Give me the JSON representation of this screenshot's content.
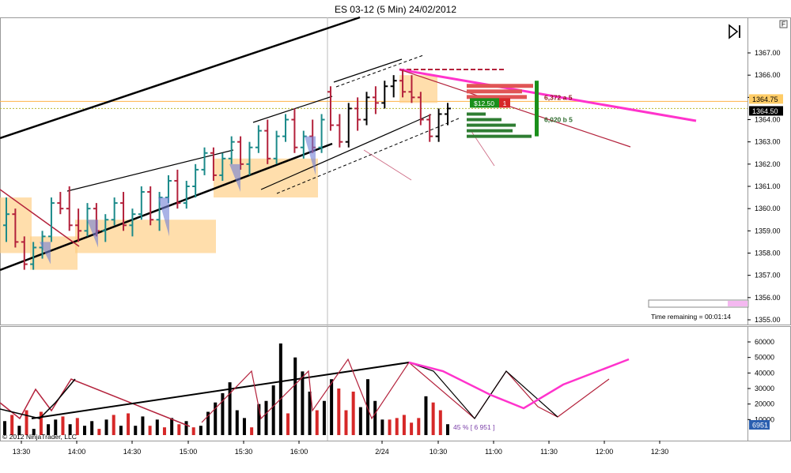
{
  "header": {
    "title": "ES 03-12 (5 Min)  24/02/2012",
    "f_box": "F",
    "copyright": "© 2012 NinjaTrader, LLC"
  },
  "chart_data": [
    {
      "type": "candlestick",
      "title": "ES 03-12 (5 Min)  24/02/2012",
      "xlabel": "",
      "ylabel": "",
      "ylim": [
        1355.0,
        1368.0
      ],
      "y_ticks": [
        1355.0,
        1356.0,
        1357.0,
        1358.0,
        1359.0,
        1360.0,
        1361.0,
        1362.0,
        1363.0,
        1364.0,
        1365.0,
        1366.0,
        1367.0
      ],
      "x_ticks": [
        "13:30",
        "14:00",
        "14:30",
        "15:00",
        "15:30",
        "16:00",
        "2/24",
        "10:30",
        "11:00",
        "11:30",
        "12:00",
        "12:30"
      ],
      "price_markers": [
        {
          "label": "1364.75",
          "value": 1364.75,
          "color": "#ffcc66"
        },
        {
          "label": "1364.50",
          "value": 1364.5,
          "color": "#000000"
        }
      ],
      "bars": [
        {
          "o": 1359.25,
          "h": 1360.5,
          "l": 1358.5,
          "c": 1359.75
        },
        {
          "o": 1359.75,
          "h": 1360.0,
          "l": 1358.25,
          "c": 1358.5
        },
        {
          "o": 1358.5,
          "h": 1358.75,
          "l": 1357.25,
          "c": 1357.5
        },
        {
          "o": 1357.5,
          "h": 1358.5,
          "l": 1357.25,
          "c": 1358.25
        },
        {
          "o": 1358.25,
          "h": 1359.0,
          "l": 1357.75,
          "c": 1358.75
        },
        {
          "o": 1358.75,
          "h": 1360.5,
          "l": 1358.5,
          "c": 1360.25
        },
        {
          "o": 1360.25,
          "h": 1360.75,
          "l": 1359.75,
          "c": 1360.0
        },
        {
          "o": 1360.0,
          "h": 1361.0,
          "l": 1359.0,
          "c": 1359.25
        },
        {
          "o": 1359.25,
          "h": 1360.0,
          "l": 1358.5,
          "c": 1359.0
        },
        {
          "o": 1359.0,
          "h": 1360.25,
          "l": 1358.75,
          "c": 1360.0
        },
        {
          "o": 1360.0,
          "h": 1360.25,
          "l": 1358.75,
          "c": 1359.0
        },
        {
          "o": 1359.0,
          "h": 1359.75,
          "l": 1358.5,
          "c": 1359.5
        },
        {
          "o": 1359.5,
          "h": 1360.5,
          "l": 1359.25,
          "c": 1360.25
        },
        {
          "o": 1360.25,
          "h": 1360.75,
          "l": 1359.0,
          "c": 1359.25
        },
        {
          "o": 1359.25,
          "h": 1360.0,
          "l": 1358.75,
          "c": 1359.75
        },
        {
          "o": 1359.75,
          "h": 1361.0,
          "l": 1359.5,
          "c": 1360.75
        },
        {
          "o": 1360.75,
          "h": 1361.0,
          "l": 1359.25,
          "c": 1359.5
        },
        {
          "o": 1359.5,
          "h": 1360.75,
          "l": 1359.0,
          "c": 1360.5
        },
        {
          "o": 1360.5,
          "h": 1361.5,
          "l": 1360.25,
          "c": 1361.25
        },
        {
          "o": 1361.25,
          "h": 1361.75,
          "l": 1360.0,
          "c": 1360.25
        },
        {
          "o": 1360.25,
          "h": 1361.25,
          "l": 1360.0,
          "c": 1361.0
        },
        {
          "o": 1361.0,
          "h": 1362.0,
          "l": 1360.5,
          "c": 1361.75
        },
        {
          "o": 1361.75,
          "h": 1362.75,
          "l": 1361.5,
          "c": 1362.5
        },
        {
          "o": 1362.5,
          "h": 1362.75,
          "l": 1361.25,
          "c": 1361.5
        },
        {
          "o": 1361.5,
          "h": 1362.5,
          "l": 1361.25,
          "c": 1362.25
        },
        {
          "o": 1362.25,
          "h": 1363.25,
          "l": 1362.0,
          "c": 1363.0
        },
        {
          "o": 1363.0,
          "h": 1363.25,
          "l": 1361.75,
          "c": 1362.0
        },
        {
          "o": 1362.0,
          "h": 1363.0,
          "l": 1361.5,
          "c": 1362.75
        },
        {
          "o": 1362.75,
          "h": 1363.75,
          "l": 1362.5,
          "c": 1363.5
        },
        {
          "o": 1363.5,
          "h": 1364.0,
          "l": 1362.0,
          "c": 1362.25
        },
        {
          "o": 1362.25,
          "h": 1363.5,
          "l": 1362.0,
          "c": 1363.25
        },
        {
          "o": 1363.25,
          "h": 1364.25,
          "l": 1363.0,
          "c": 1364.0
        },
        {
          "o": 1364.0,
          "h": 1364.5,
          "l": 1362.5,
          "c": 1362.75
        },
        {
          "o": 1362.75,
          "h": 1363.5,
          "l": 1362.25,
          "c": 1363.25
        },
        {
          "o": 1363.25,
          "h": 1364.0,
          "l": 1362.5,
          "c": 1362.75
        },
        {
          "o": 1362.75,
          "h": 1364.25,
          "l": 1362.5,
          "c": 1364.0
        },
        {
          "o": 1365.25,
          "h": 1365.5,
          "l": 1363.5,
          "c": 1363.75
        },
        {
          "o": 1363.75,
          "h": 1364.25,
          "l": 1362.75,
          "c": 1363.0
        },
        {
          "o": 1363.0,
          "h": 1364.75,
          "l": 1362.75,
          "c": 1364.5
        },
        {
          "o": 1364.5,
          "h": 1365.0,
          "l": 1363.5,
          "c": 1364.0
        },
        {
          "o": 1364.0,
          "h": 1365.25,
          "l": 1363.75,
          "c": 1365.0
        },
        {
          "o": 1365.0,
          "h": 1365.5,
          "l": 1364.25,
          "c": 1364.75
        },
        {
          "o": 1364.75,
          "h": 1365.75,
          "l": 1364.5,
          "c": 1365.5
        },
        {
          "o": 1365.5,
          "h": 1366.0,
          "l": 1365.0,
          "c": 1365.75
        },
        {
          "o": 1365.75,
          "h": 1366.25,
          "l": 1365.0,
          "c": 1365.25
        },
        {
          "o": 1365.25,
          "h": 1366.0,
          "l": 1364.75,
          "c": 1365.0
        },
        {
          "o": 1365.0,
          "h": 1365.25,
          "l": 1363.75,
          "c": 1364.0
        },
        {
          "o": 1364.0,
          "h": 1364.25,
          "l": 1363.0,
          "c": 1363.25
        },
        {
          "o": 1363.25,
          "h": 1364.5,
          "l": 1363.0,
          "c": 1364.25
        },
        {
          "o": 1364.25,
          "h": 1364.75,
          "l": 1363.75,
          "c": 1364.5
        }
      ],
      "dom_labels": [
        {
          "label": "6,372 a 5",
          "value": 1365.0,
          "color": "#8b1a1a"
        },
        {
          "label": "6,020 b 5",
          "value": 1364.0,
          "color": "#2e6b2e"
        }
      ],
      "position": {
        "label": "$12.50",
        "qty": "1"
      },
      "timer": {
        "label": "Time remaining = 00:01:14"
      }
    },
    {
      "type": "bar",
      "ylim": [
        0,
        65000
      ],
      "y_ticks": [
        10000,
        20000,
        30000,
        40000,
        50000,
        60000
      ],
      "y_tick_labels": [
        "10000",
        "20000",
        "30000",
        "40000",
        "50000",
        "60000"
      ],
      "last_value_label": "6951",
      "annotation": "45 % [ 6 951 ]",
      "values": [
        9000,
        13000,
        6000,
        16000,
        4000,
        15000,
        7000,
        10000,
        12000,
        7000,
        11000,
        6000,
        9000,
        4000,
        10000,
        13000,
        6000,
        14000,
        6000,
        12000,
        6000,
        10000,
        5000,
        11000,
        7000,
        9000,
        5000,
        6000,
        15000,
        21000,
        27000,
        34000,
        16000,
        11000,
        5000,
        20000,
        22000,
        32000,
        59000,
        14000,
        50000,
        41000,
        28000,
        16000,
        22000,
        36000,
        30000,
        16000,
        28000,
        18000,
        36000,
        22000,
        10000,
        10000,
        11000,
        13000,
        8000,
        11000,
        25000,
        21000,
        16000,
        7000
      ],
      "colors": [
        "b",
        "r",
        "b",
        "r",
        "b",
        "r",
        "b",
        "b",
        "r",
        "b",
        "r",
        "b",
        "b",
        "r",
        "b",
        "r",
        "b",
        "r",
        "b",
        "b",
        "r",
        "b",
        "r",
        "b",
        "r",
        "b",
        "r",
        "b",
        "b",
        "b",
        "b",
        "b",
        "b",
        "b",
        "r",
        "b",
        "b",
        "b",
        "b",
        "r",
        "b",
        "b",
        "b",
        "r",
        "b",
        "b",
        "r",
        "r",
        "r",
        "b",
        "b",
        "b",
        "b",
        "r",
        "r",
        "r",
        "r",
        "r",
        "b",
        "r",
        "r",
        "b"
      ]
    }
  ]
}
